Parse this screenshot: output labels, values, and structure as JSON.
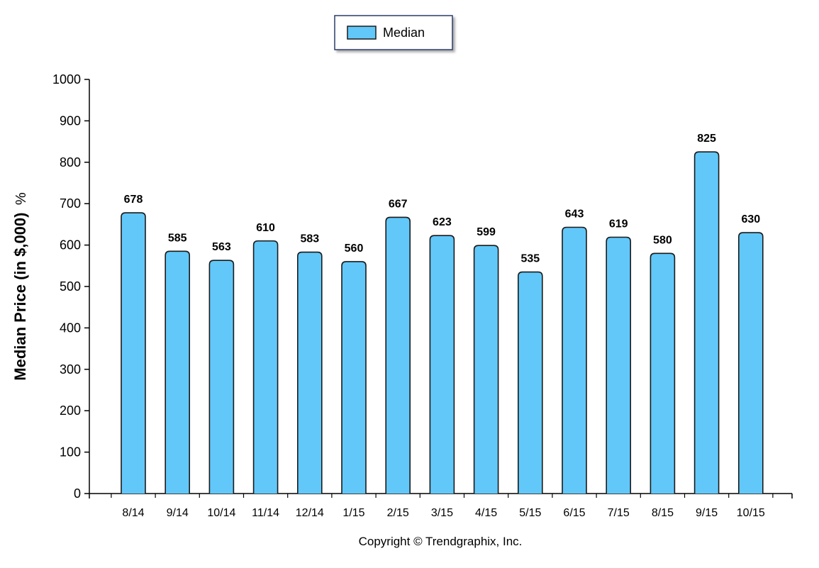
{
  "chart_data": {
    "type": "bar",
    "categories": [
      "8/14",
      "9/14",
      "10/14",
      "11/14",
      "12/14",
      "1/15",
      "2/15",
      "3/15",
      "4/15",
      "5/15",
      "6/15",
      "7/15",
      "8/15",
      "9/15",
      "10/15"
    ],
    "series": [
      {
        "name": "Median",
        "values": [
          678,
          585,
          563,
          610,
          583,
          560,
          667,
          623,
          599,
          535,
          643,
          619,
          580,
          825,
          630
        ]
      }
    ],
    "ylabel": "Median Price (in $,000)",
    "ylabel_suffix": "%",
    "xlabel": "",
    "ylim": [
      0,
      1000
    ],
    "yticks": [
      0,
      100,
      200,
      300,
      400,
      500,
      600,
      700,
      800,
      900,
      1000
    ],
    "legend_position": "top-center",
    "grid": false,
    "colors": {
      "bar_fill": "#62c8f9",
      "bar_stroke": "#1a1a1a",
      "legend_border": "#2b3a6b"
    }
  },
  "copyright": "Copyright © Trendgraphix, Inc."
}
